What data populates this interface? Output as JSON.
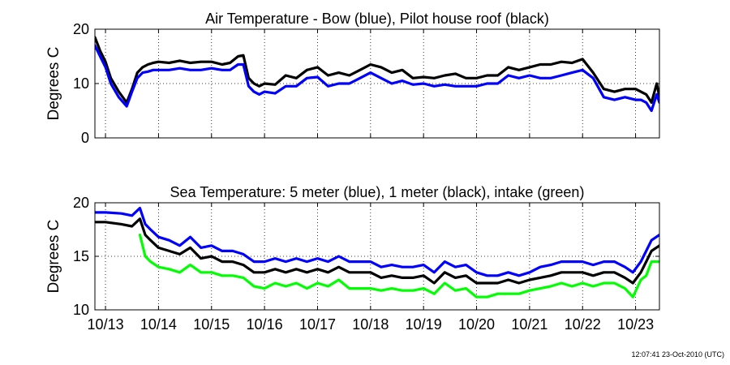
{
  "timestamp": "12:07:41 23-Oct-2010 (UTC)",
  "colors": {
    "blue": "#0000ff",
    "black": "#000000",
    "green": "#00ff00"
  },
  "chart_data": [
    {
      "type": "line",
      "title": "Air Temperature - Bow (blue), Pilot house roof (black)",
      "ylabel": "Degrees C",
      "xlabel": "",
      "ylim": [
        0,
        20
      ],
      "yticks": [
        0,
        10,
        20
      ],
      "xlim": [
        12.8,
        23.45
      ],
      "xticks": [
        13,
        14,
        15,
        16,
        17,
        18,
        19,
        20,
        21,
        22,
        23
      ],
      "xtick_labels": [],
      "grid": true,
      "series": [
        {
          "name": "Pilot house roof",
          "color": "#000000",
          "x": [
            12.8,
            12.9,
            13.0,
            13.1,
            13.25,
            13.4,
            13.5,
            13.6,
            13.7,
            13.8,
            13.9,
            14.0,
            14.2,
            14.4,
            14.6,
            14.8,
            15.0,
            15.2,
            15.35,
            15.5,
            15.6,
            15.7,
            15.8,
            15.9,
            16.0,
            16.2,
            16.4,
            16.6,
            16.8,
            17.0,
            17.2,
            17.4,
            17.6,
            17.8,
            18.0,
            18.2,
            18.4,
            18.6,
            18.8,
            19.0,
            19.2,
            19.4,
            19.6,
            19.8,
            20.0,
            20.2,
            20.4,
            20.6,
            20.8,
            21.0,
            21.2,
            21.4,
            21.6,
            21.8,
            22.0,
            22.2,
            22.4,
            22.6,
            22.8,
            23.0,
            23.1,
            23.2,
            23.3,
            23.4,
            23.45
          ],
          "y": [
            18.5,
            16.0,
            14.0,
            11.0,
            8.5,
            6.5,
            9.0,
            12.0,
            13.0,
            13.5,
            13.8,
            14.0,
            13.8,
            14.2,
            13.8,
            14.0,
            14.0,
            13.5,
            13.8,
            15.0,
            15.2,
            11.0,
            10.0,
            9.5,
            10.0,
            9.8,
            11.5,
            11.0,
            12.5,
            13.0,
            11.5,
            12.0,
            11.5,
            12.5,
            13.5,
            13.0,
            12.0,
            12.5,
            11.0,
            11.2,
            11.0,
            11.5,
            11.8,
            11.0,
            11.0,
            11.5,
            11.5,
            13.0,
            12.5,
            13.0,
            13.5,
            13.5,
            14.0,
            13.8,
            14.5,
            12.0,
            9.0,
            8.5,
            9.0,
            9.0,
            8.5,
            8.0,
            6.5,
            10.0,
            7.5
          ]
        },
        {
          "name": "Bow",
          "color": "#0000ff",
          "x": [
            12.8,
            12.9,
            13.0,
            13.1,
            13.25,
            13.4,
            13.5,
            13.6,
            13.7,
            13.8,
            13.9,
            14.0,
            14.2,
            14.4,
            14.6,
            14.8,
            15.0,
            15.2,
            15.35,
            15.5,
            15.6,
            15.7,
            15.8,
            15.9,
            16.0,
            16.2,
            16.4,
            16.6,
            16.8,
            17.0,
            17.2,
            17.4,
            17.6,
            17.8,
            18.0,
            18.2,
            18.4,
            18.6,
            18.8,
            19.0,
            19.2,
            19.4,
            19.6,
            19.8,
            20.0,
            20.2,
            20.4,
            20.6,
            20.8,
            21.0,
            21.2,
            21.4,
            21.6,
            21.8,
            22.0,
            22.2,
            22.4,
            22.6,
            22.8,
            23.0,
            23.1,
            23.2,
            23.3,
            23.4,
            23.45
          ],
          "y": [
            17.0,
            15.0,
            13.0,
            10.0,
            7.5,
            5.8,
            8.5,
            11.0,
            12.0,
            12.2,
            12.5,
            12.5,
            12.5,
            12.8,
            12.5,
            12.5,
            12.8,
            12.5,
            12.5,
            13.5,
            13.5,
            9.5,
            8.5,
            8.0,
            8.5,
            8.2,
            9.5,
            9.5,
            11.0,
            11.2,
            9.5,
            10.0,
            10.0,
            11.0,
            12.0,
            11.0,
            10.0,
            10.5,
            9.8,
            10.0,
            9.5,
            9.8,
            9.5,
            9.5,
            9.5,
            10.0,
            10.0,
            11.5,
            11.0,
            11.5,
            11.0,
            11.0,
            11.5,
            12.0,
            12.5,
            11.0,
            7.5,
            7.0,
            7.5,
            7.0,
            7.0,
            6.5,
            5.0,
            8.0,
            6.5
          ]
        }
      ]
    },
    {
      "type": "line",
      "title": "Sea Temperature: 5 meter (blue), 1 meter (black), intake (green)",
      "ylabel": "Degrees C",
      "xlabel": "",
      "ylim": [
        10,
        20
      ],
      "yticks": [
        10,
        15,
        20
      ],
      "xlim": [
        12.8,
        23.45
      ],
      "xticks": [
        13,
        14,
        15,
        16,
        17,
        18,
        19,
        20,
        21,
        22,
        23
      ],
      "xtick_labels": [
        "10/13",
        "10/14",
        "10/15",
        "10/16",
        "10/17",
        "10/18",
        "10/19",
        "10/20",
        "10/21",
        "10/22",
        "10/23"
      ],
      "grid": true,
      "series": [
        {
          "name": "5 meter",
          "color": "#0000ff",
          "x": [
            12.8,
            13.0,
            13.3,
            13.5,
            13.65,
            13.75,
            13.85,
            14.0,
            14.2,
            14.4,
            14.6,
            14.8,
            15.0,
            15.2,
            15.4,
            15.6,
            15.8,
            16.0,
            16.2,
            16.4,
            16.6,
            16.8,
            17.0,
            17.2,
            17.4,
            17.6,
            17.8,
            18.0,
            18.2,
            18.4,
            18.6,
            18.8,
            19.0,
            19.2,
            19.4,
            19.6,
            19.8,
            20.0,
            20.2,
            20.4,
            20.6,
            20.8,
            21.0,
            21.2,
            21.4,
            21.6,
            21.8,
            22.0,
            22.2,
            22.4,
            22.6,
            22.8,
            22.95,
            23.1,
            23.2,
            23.3,
            23.45
          ],
          "y": [
            19.1,
            19.1,
            19.0,
            18.8,
            19.5,
            18.0,
            17.5,
            16.8,
            16.5,
            16.0,
            16.8,
            15.8,
            16.0,
            15.5,
            15.5,
            15.2,
            14.5,
            14.5,
            14.8,
            14.5,
            14.8,
            14.5,
            14.8,
            14.5,
            15.0,
            14.5,
            14.5,
            14.5,
            14.0,
            14.2,
            14.0,
            14.0,
            14.2,
            13.5,
            14.5,
            14.0,
            14.2,
            13.5,
            13.2,
            13.2,
            13.5,
            13.2,
            13.5,
            14.0,
            14.2,
            14.5,
            14.5,
            14.5,
            14.2,
            14.5,
            14.5,
            14.0,
            13.5,
            14.5,
            15.5,
            16.5,
            17.0
          ]
        },
        {
          "name": "1 meter",
          "color": "#000000",
          "x": [
            12.8,
            13.0,
            13.3,
            13.5,
            13.65,
            13.75,
            13.85,
            14.0,
            14.2,
            14.4,
            14.6,
            14.8,
            15.0,
            15.2,
            15.4,
            15.6,
            15.8,
            16.0,
            16.2,
            16.4,
            16.6,
            16.8,
            17.0,
            17.2,
            17.4,
            17.6,
            17.8,
            18.0,
            18.2,
            18.4,
            18.6,
            18.8,
            19.0,
            19.2,
            19.4,
            19.6,
            19.8,
            20.0,
            20.2,
            20.4,
            20.6,
            20.8,
            21.0,
            21.2,
            21.4,
            21.6,
            21.8,
            22.0,
            22.2,
            22.4,
            22.6,
            22.8,
            22.95,
            23.1,
            23.2,
            23.3,
            23.45
          ],
          "y": [
            18.2,
            18.2,
            18.0,
            17.8,
            18.5,
            17.0,
            16.5,
            15.8,
            15.5,
            15.2,
            15.8,
            14.8,
            15.0,
            14.5,
            14.5,
            14.2,
            13.5,
            13.5,
            13.8,
            13.5,
            13.8,
            13.5,
            13.8,
            13.5,
            14.0,
            13.5,
            13.5,
            13.5,
            13.0,
            13.2,
            13.0,
            13.0,
            13.2,
            12.5,
            13.5,
            13.0,
            13.2,
            12.5,
            12.5,
            12.5,
            12.8,
            12.5,
            12.8,
            13.0,
            13.2,
            13.5,
            13.5,
            13.5,
            13.2,
            13.5,
            13.5,
            13.0,
            12.5,
            13.5,
            14.5,
            15.5,
            16.0
          ]
        },
        {
          "name": "intake",
          "color": "#00ff00",
          "x": [
            13.65,
            13.75,
            13.85,
            14.0,
            14.2,
            14.4,
            14.6,
            14.8,
            15.0,
            15.2,
            15.4,
            15.6,
            15.8,
            16.0,
            16.2,
            16.4,
            16.6,
            16.8,
            17.0,
            17.2,
            17.4,
            17.6,
            17.8,
            18.0,
            18.2,
            18.4,
            18.6,
            18.8,
            19.0,
            19.2,
            19.4,
            19.6,
            19.8,
            20.0,
            20.2,
            20.4,
            20.6,
            20.8,
            21.0,
            21.2,
            21.4,
            21.6,
            21.8,
            22.0,
            22.2,
            22.4,
            22.6,
            22.8,
            22.95,
            23.1,
            23.2,
            23.3,
            23.45
          ],
          "y": [
            17.0,
            15.0,
            14.5,
            14.0,
            13.8,
            13.5,
            14.2,
            13.5,
            13.5,
            13.2,
            13.2,
            13.0,
            12.2,
            12.0,
            12.5,
            12.2,
            12.5,
            12.0,
            12.5,
            12.2,
            12.8,
            12.0,
            12.0,
            12.0,
            11.8,
            12.0,
            11.8,
            11.8,
            12.0,
            11.5,
            12.5,
            11.8,
            12.0,
            11.2,
            11.2,
            11.5,
            11.5,
            11.5,
            11.8,
            12.0,
            12.2,
            12.5,
            12.2,
            12.5,
            12.2,
            12.5,
            12.5,
            12.0,
            11.2,
            12.8,
            13.2,
            14.5,
            14.5
          ]
        }
      ]
    }
  ]
}
